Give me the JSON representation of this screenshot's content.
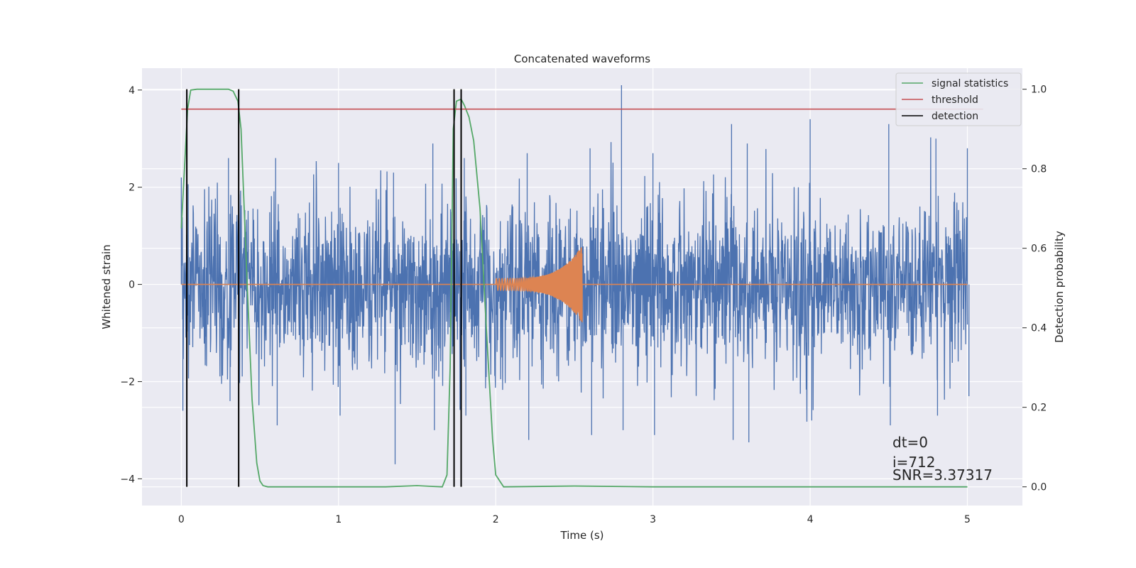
{
  "chart_data": {
    "type": "line",
    "title": "Concatenated waveforms",
    "xlabel": "Time (s)",
    "ylabel": "Whitened strain",
    "y2label": "Detection probability",
    "xlim": [
      -0.25,
      5.35
    ],
    "ylim": [
      -4.55,
      4.45
    ],
    "y2lim": [
      -0.047,
      1.053
    ],
    "xticks": [
      0,
      1,
      2,
      3,
      4,
      5
    ],
    "yticks": [
      -4,
      -2,
      0,
      2,
      4
    ],
    "y2ticks": [
      0.0,
      0.2,
      0.4,
      0.6,
      0.8,
      1.0
    ],
    "grid": true,
    "legend_position": "top-right",
    "legend": [
      {
        "label": "signal statistics",
        "color": "#55a868"
      },
      {
        "label": "threshold",
        "color": "#c44e52"
      },
      {
        "label": "detection",
        "color": "#000000"
      }
    ],
    "colors": {
      "strain": "#4c72b0",
      "template": "#dd8452",
      "signal_statistics": "#55a868",
      "threshold": "#c44e52",
      "detection": "#000000",
      "plot_bg": "#eaeaf2",
      "grid": "#ffffff"
    },
    "series": [
      {
        "role": "whitened-strain",
        "description": "noise-like whitened strain sampled 0–5 s",
        "x_range": [
          0,
          5
        ],
        "typical_amplitude": 1.6,
        "envelope": [
          [
            0.0,
            2.2,
            -2.6
          ],
          [
            0.3,
            2.6,
            -2.4
          ],
          [
            0.6,
            2.6,
            -2.9
          ],
          [
            1.0,
            2.5,
            -2.7
          ],
          [
            1.35,
            2.3,
            -3.7
          ],
          [
            1.6,
            2.9,
            -3.0
          ],
          [
            1.8,
            2.6,
            -2.7
          ],
          [
            2.2,
            2.7,
            -3.2
          ],
          [
            2.6,
            2.8,
            -3.1
          ],
          [
            2.8,
            4.1,
            -3.0
          ],
          [
            3.0,
            2.7,
            -3.1
          ],
          [
            3.5,
            3.3,
            -3.2
          ],
          [
            3.6,
            2.9,
            -3.25
          ],
          [
            4.0,
            3.4,
            -2.8
          ],
          [
            4.5,
            3.3,
            -2.9
          ],
          [
            4.8,
            3.0,
            -2.7
          ],
          [
            5.0,
            2.8,
            -2.3
          ]
        ]
      },
      {
        "role": "injected-waveform",
        "description": "chirp signal between 2.0 s and 2.55 s",
        "x_range": [
          2.0,
          2.55
        ],
        "peak_amplitude": 0.8
      },
      {
        "name": "signal statistics",
        "axis": "right",
        "x": [
          0.0,
          0.02,
          0.04,
          0.06,
          0.1,
          0.2,
          0.3,
          0.33,
          0.36,
          0.38,
          0.42,
          0.45,
          0.48,
          0.5,
          0.52,
          0.55,
          0.7,
          1.0,
          1.3,
          1.5,
          1.6,
          1.66,
          1.69,
          1.71,
          1.73,
          1.75,
          1.78,
          1.8,
          1.83,
          1.86,
          1.9,
          1.94,
          1.98,
          2.0,
          2.05,
          2.5,
          3.0,
          3.5,
          4.0,
          4.5,
          5.0
        ],
        "y": [
          0.65,
          0.8,
          0.95,
          0.998,
          1.0,
          1.0,
          1.0,
          0.995,
          0.97,
          0.9,
          0.5,
          0.22,
          0.06,
          0.015,
          0.003,
          0.0,
          0.0,
          0.0,
          0.0,
          0.003,
          0.001,
          0.0,
          0.03,
          0.3,
          0.9,
          0.97,
          0.975,
          0.96,
          0.93,
          0.87,
          0.7,
          0.4,
          0.12,
          0.03,
          0.0,
          0.002,
          0.0,
          0.0,
          0.0,
          0.0,
          0.0
        ]
      },
      {
        "name": "threshold",
        "axis": "right",
        "x": [
          0.0,
          5.1
        ],
        "y": [
          0.95,
          0.95
        ]
      },
      {
        "name": "detection",
        "axis": "right",
        "type": "vlines",
        "x": [
          0.035,
          0.365,
          1.735,
          1.78
        ],
        "y_from": 0.0,
        "y_to": 1.0
      }
    ],
    "annotations": [
      "dt=0",
      "i=712",
      "SNR=3.37317"
    ]
  }
}
